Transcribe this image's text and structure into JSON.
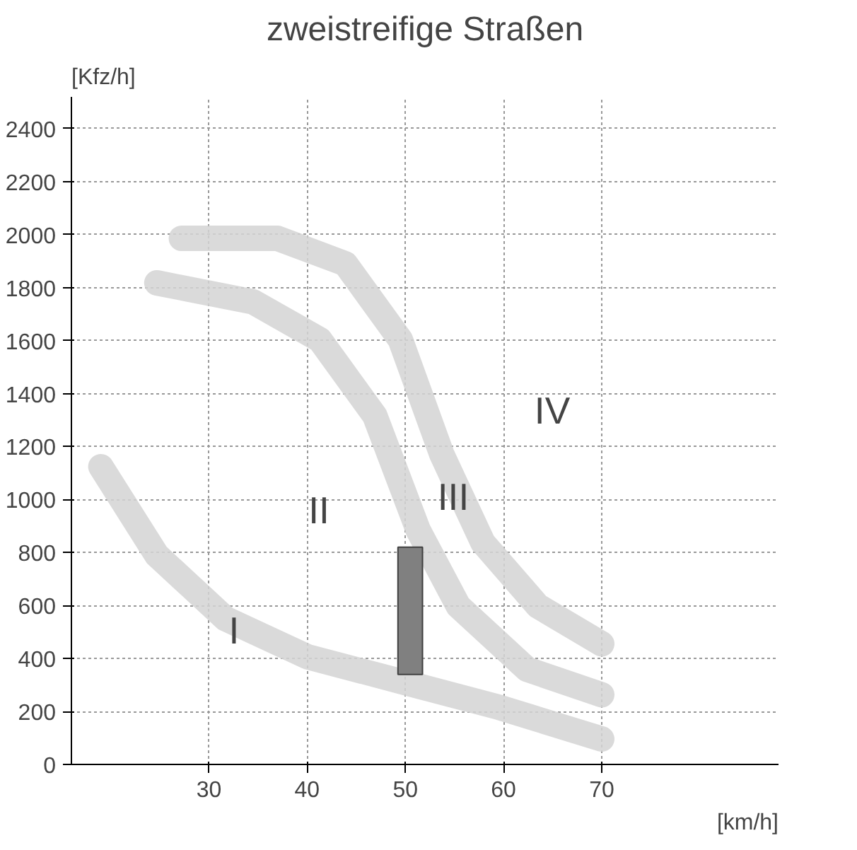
{
  "chart_data": {
    "type": "line",
    "title": "zweistreifige Straßen",
    "xlabel": "[km/h]",
    "ylabel": "[Kfz/h]",
    "xlim": [
      16,
      88
    ],
    "ylim": [
      0,
      2520
    ],
    "xticks": [
      30,
      40,
      50,
      60,
      70
    ],
    "yticks": [
      0,
      200,
      400,
      600,
      800,
      1000,
      1200,
      1400,
      1600,
      1800,
      2000,
      2200,
      2400
    ],
    "grid": true,
    "line_style": "solid",
    "marker": "none",
    "series": [
      {
        "color": "#d4d4d4",
        "x": [
          19,
          24.7,
          31.7,
          40,
          49.8,
          59.6,
          70
        ],
        "values": [
          1124,
          790,
          550,
          407,
          311,
          215,
          96
        ]
      },
      {
        "color": "#d4d4d4",
        "x": [
          24.7,
          34.5,
          41.3,
          46.9,
          51.3,
          55.4,
          62.4,
          70
        ],
        "values": [
          1818,
          1746,
          1603,
          1316,
          885,
          598,
          359,
          263
        ]
      },
      {
        "color": "#d4d4d4",
        "x": [
          27.2,
          37,
          43.9,
          49.5,
          53.7,
          57.9,
          63.5,
          70
        ],
        "values": [
          1986,
          1986,
          1890,
          1603,
          1172,
          837,
          598,
          455
        ]
      },
      {
        "type": "bar",
        "color": "#808080",
        "x": [
          50.5
        ],
        "values": [
          480
        ],
        "base": [
          340
        ]
      }
    ],
    "annotations": [
      "I",
      "II",
      "III",
      "IV"
    ]
  }
}
